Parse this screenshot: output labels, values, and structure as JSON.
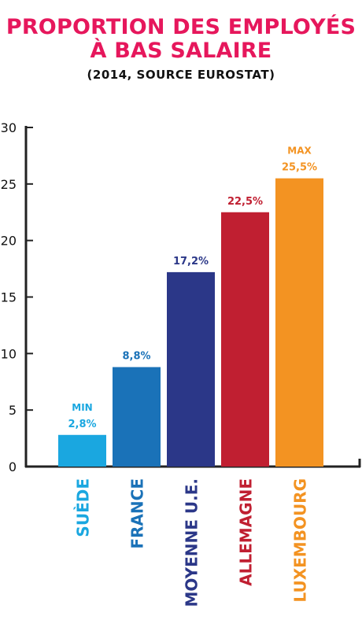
{
  "header": {
    "title_line1": "PROPORTION DES EMPLOYÉS",
    "title_line2": "À BAS SALAIRE",
    "subtitle": "(2014, SOURCE EUROSTAT)"
  },
  "chart_data": {
    "type": "bar",
    "categories": [
      "SUÈDE",
      "FRANCE",
      "MOYENNE U.E.",
      "ALLEMAGNE",
      "LUXEMBOURG"
    ],
    "values": [
      2.8,
      8.8,
      17.2,
      22.5,
      25.5
    ],
    "value_labels": [
      "2,8%",
      "8,8%",
      "17,2%",
      "22,5%",
      "25,5%"
    ],
    "annotations": [
      "MIN",
      "",
      "",
      "",
      "MAX"
    ],
    "colors": [
      "#1aa7e0",
      "#1a72b8",
      "#2b3788",
      "#c01f31",
      "#f39322"
    ],
    "yticks": [
      0,
      5,
      10,
      15,
      20,
      25,
      30
    ],
    "ylim": [
      0,
      30
    ],
    "title": "PROPORTION DES EMPLOYÉS À BAS SALAIRE",
    "subtitle": "(2014, SOURCE EUROSTAT)",
    "grid": false
  }
}
